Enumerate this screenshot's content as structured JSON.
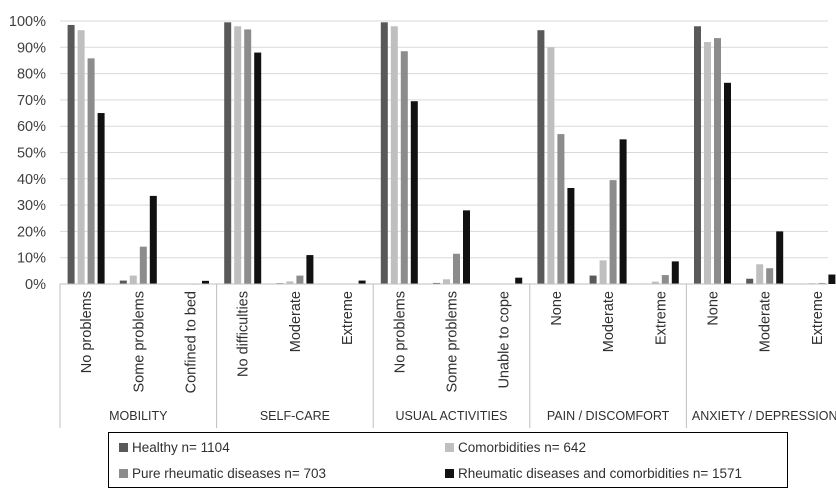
{
  "chart_data": {
    "type": "bar",
    "ylim": [
      0,
      100
    ],
    "ytick_labels": [
      "0%",
      "10%",
      "20%",
      "30%",
      "40%",
      "50%",
      "60%",
      "70%",
      "80%",
      "90%",
      "100%"
    ],
    "groups": [
      {
        "name": "MOBILITY",
        "categories": [
          "No problems",
          "Some problems",
          "Confined to bed"
        ]
      },
      {
        "name": "SELF-CARE",
        "categories": [
          "No difficulties",
          "Moderate",
          "Extreme"
        ]
      },
      {
        "name": "USUAL ACTIVITIES",
        "categories": [
          "No problems",
          "Some problems",
          "Unable to cope"
        ]
      },
      {
        "name": "PAIN / DISCOMFORT",
        "categories": [
          "None",
          "Moderate",
          "Extreme"
        ]
      },
      {
        "name": "ANXIETY / DEPRESSION",
        "categories": [
          "None",
          "Moderate",
          "Extreme"
        ]
      }
    ],
    "series": [
      {
        "name": "Healthy n= 1104",
        "color": "#595959",
        "values": [
          98.5,
          1.3,
          0.1,
          99.5,
          0.3,
          0.1,
          99.5,
          0.4,
          0.1,
          96.5,
          3.2,
          0.2,
          98,
          2,
          0.2
        ]
      },
      {
        "name": "Comorbidities n= 642",
        "color": "#bfbfbf",
        "values": [
          96.5,
          3.2,
          0.1,
          98,
          1,
          0.1,
          98,
          1.8,
          0.1,
          90,
          9,
          0.9,
          92,
          7.5,
          0.3
        ]
      },
      {
        "name": "Pure rheumatic diseases n= 703",
        "color": "#8c8c8c",
        "values": [
          85.8,
          14.2,
          0,
          96.8,
          3.2,
          0.1,
          88.5,
          11.5,
          0.1,
          57,
          39.5,
          3.4,
          93.5,
          6,
          0.4
        ]
      },
      {
        "name": "Rheumatic diseases and comorbidities n= 1571",
        "color": "#111111",
        "values": [
          65,
          33.5,
          1.2,
          88,
          11,
          1.3,
          69.5,
          28,
          2.4,
          36.5,
          55,
          8.6,
          76.5,
          20,
          3.6
        ]
      }
    ],
    "grid": true,
    "legend_position": "bottom"
  }
}
